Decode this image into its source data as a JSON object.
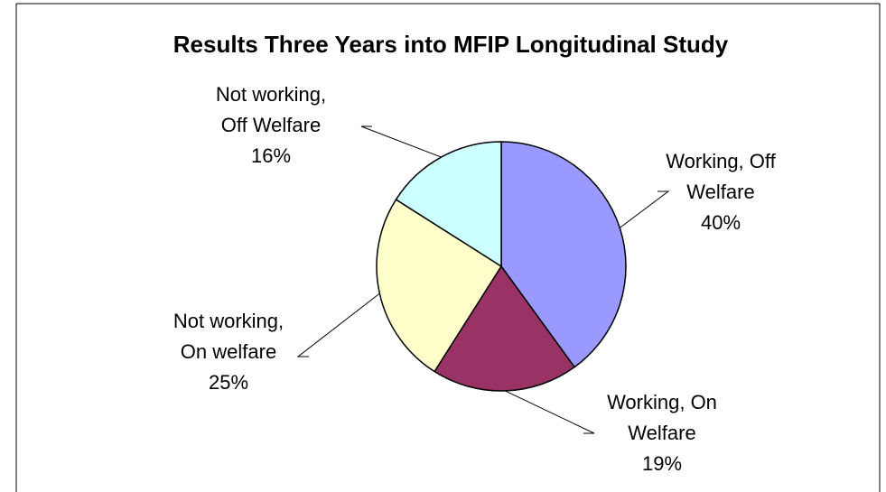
{
  "chart_data": {
    "type": "pie",
    "title": "Results Three Years into MFIP Longitudinal Study",
    "slices": [
      {
        "name": "Working, Off Welfare",
        "label_lines": [
          "Working, Off",
          "Welfare"
        ],
        "value": 40,
        "value_label": "40%",
        "color": "#9999ff"
      },
      {
        "name": "Working, On Welfare",
        "label_lines": [
          "Working, On",
          "Welfare"
        ],
        "value": 19,
        "value_label": "19%",
        "color": "#993366"
      },
      {
        "name": "Not working, On welfare",
        "label_lines": [
          "Not working,",
          "On welfare"
        ],
        "value": 25,
        "value_label": "25%",
        "color": "#ffffcc"
      },
      {
        "name": "Not working, Off Welfare",
        "label_lines": [
          "Not working,",
          "Off Welfare"
        ],
        "value": 16,
        "value_label": "16%",
        "color": "#ccffff"
      }
    ],
    "start_angle_deg": 0,
    "direction": "clockwise",
    "legend": "none"
  }
}
